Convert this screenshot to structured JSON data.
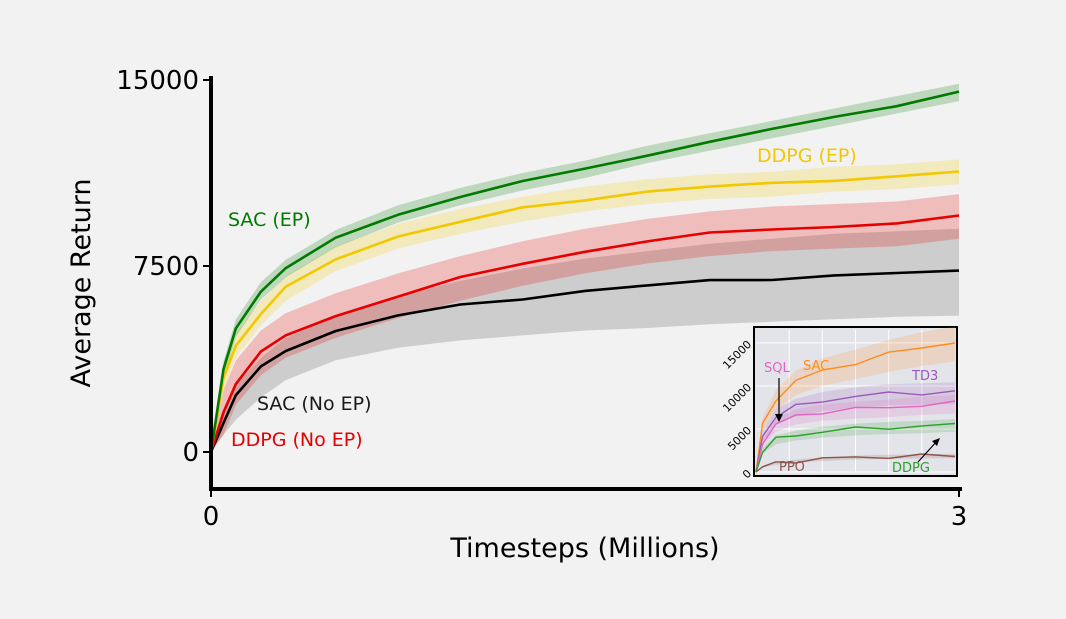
{
  "chart_data": [
    {
      "type": "line",
      "title": "",
      "xlabel": "Timesteps (Millions)",
      "ylabel": "Average Return",
      "xlim": [
        0,
        3
      ],
      "ylim": [
        -1200,
        15000
      ],
      "xticks": [
        "0",
        "3"
      ],
      "yticks": [
        "0",
        "7500",
        "15000"
      ],
      "grid": false,
      "x": [
        0,
        0.05,
        0.1,
        0.2,
        0.3,
        0.5,
        0.75,
        1.0,
        1.25,
        1.5,
        1.75,
        2.0,
        2.25,
        2.5,
        2.75,
        3.0
      ],
      "series": [
        {
          "name": "SAC (EP)",
          "color": "#007a00",
          "values": [
            0,
            3300,
            5000,
            6500,
            7400,
            8600,
            9600,
            10300,
            10900,
            11400,
            12000,
            12500,
            13000,
            13500,
            14000,
            14500
          ],
          "band": 350
        },
        {
          "name": "DDPG (EP)",
          "color": "#f2c800",
          "values": [
            0,
            3000,
            4300,
            5600,
            6600,
            7800,
            8700,
            9300,
            9800,
            10200,
            10500,
            10700,
            10800,
            11000,
            11100,
            11300
          ],
          "band": 500
        },
        {
          "name": "DDPG (No EP)",
          "color": "#e60000",
          "values": [
            0,
            1600,
            2800,
            4000,
            4700,
            5500,
            6300,
            7000,
            7600,
            8100,
            8500,
            8800,
            9000,
            9100,
            9200,
            9500
          ],
          "band": 900
        },
        {
          "name": "SAC (No EP)",
          "color": "#000000",
          "values": [
            0,
            1200,
            2300,
            3400,
            4100,
            4900,
            5500,
            5900,
            6200,
            6500,
            6700,
            6900,
            7000,
            7100,
            7200,
            7300
          ],
          "band_lower": [
            0,
            700,
            1300,
            2200,
            2900,
            3700,
            4200,
            4500,
            4700,
            4900,
            5000,
            5150,
            5250,
            5350,
            5450,
            5500
          ],
          "band_upper": [
            0,
            1500,
            2700,
            3800,
            4600,
            5500,
            6300,
            6900,
            7400,
            7800,
            8100,
            8400,
            8600,
            8800,
            8900,
            9000
          ]
        }
      ],
      "annotations": [
        "SAC (EP)",
        "DDPG (EP)",
        "SAC (No EP)",
        "DDPG (No EP)"
      ]
    },
    {
      "type": "line",
      "title": "",
      "xlabel": "",
      "ylabel": "",
      "xlim": [
        0,
        3
      ],
      "ylim": [
        0,
        16500
      ],
      "yticks": [
        "0",
        "5000",
        "10000",
        "15000"
      ],
      "grid": true,
      "x": [
        0,
        0.1,
        0.3,
        0.6,
        1.0,
        1.5,
        2.0,
        2.5,
        3.0
      ],
      "series": [
        {
          "name": "SAC",
          "color": "#ff8c1a",
          "values": [
            0,
            5500,
            8500,
            10500,
            11800,
            12700,
            13700,
            14500,
            15100
          ]
        },
        {
          "name": "TD3",
          "color": "#9b59b6",
          "values": [
            0,
            4200,
            6500,
            7600,
            8300,
            8800,
            9100,
            9200,
            9300
          ]
        },
        {
          "name": "SQL",
          "color": "#e066c0",
          "values": [
            0,
            3500,
            5500,
            6500,
            7000,
            7300,
            7500,
            7800,
            8000
          ]
        },
        {
          "name": "DDPG",
          "color": "#2ca02c",
          "values": [
            0,
            2500,
            3800,
            4300,
            4700,
            5000,
            5200,
            5300,
            5500
          ]
        },
        {
          "name": "PPO",
          "color": "#8c564b",
          "values": [
            0,
            600,
            1000,
            1300,
            1500,
            1700,
            1800,
            1850,
            1900
          ]
        }
      ],
      "annotations": [
        "SQL",
        "SAC",
        "TD3",
        "PPO",
        "DDPG"
      ]
    }
  ]
}
